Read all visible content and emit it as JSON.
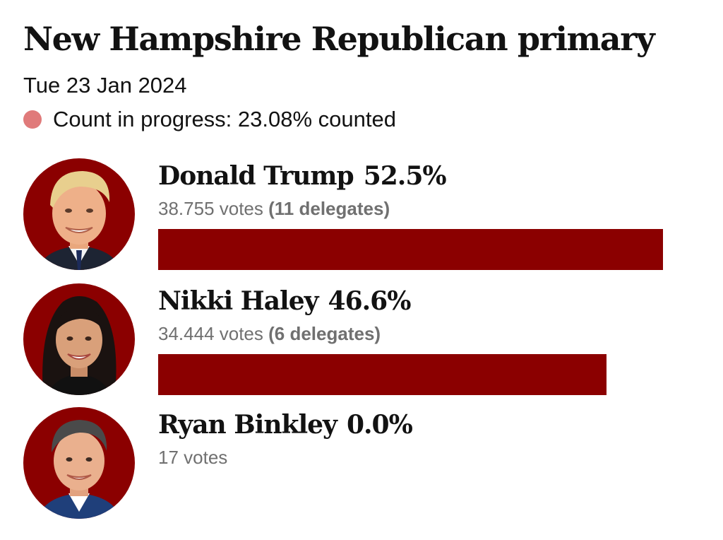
{
  "header": {
    "title": "New Hampshire Republican primary",
    "date": "Tue 23 Jan 2024",
    "status_text": "Count in progress: 23.08% counted",
    "status_dot_color": "#e07a7a"
  },
  "colors": {
    "bar": "#8b0000",
    "avatar_bg": "#8b0000"
  },
  "candidates": [
    {
      "name": "Donald Trump",
      "percent_label": "52.5%",
      "votes_label": "38.755 votes",
      "delegates_label": "(11 delegates)",
      "photo_icon": "candidate-photo-icon"
    },
    {
      "name": "Nikki Haley",
      "percent_label": "46.6%",
      "votes_label": "34.444 votes",
      "delegates_label": "(6 delegates)",
      "photo_icon": "candidate-photo-icon"
    },
    {
      "name": "Ryan Binkley",
      "percent_label": "0.0%",
      "votes_label": "17 votes",
      "delegates_label": "",
      "photo_icon": "candidate-photo-icon"
    }
  ],
  "chart_data": {
    "type": "bar",
    "orientation": "horizontal",
    "categories": [
      "Donald Trump",
      "Nikki Haley",
      "Ryan Binkley"
    ],
    "values": [
      52.5,
      46.6,
      0.0
    ],
    "votes": [
      38755,
      34444,
      17
    ],
    "delegates": [
      11,
      6,
      null
    ],
    "title": "New Hampshire Republican primary",
    "xlabel": "",
    "ylabel": "",
    "grid": false
  }
}
